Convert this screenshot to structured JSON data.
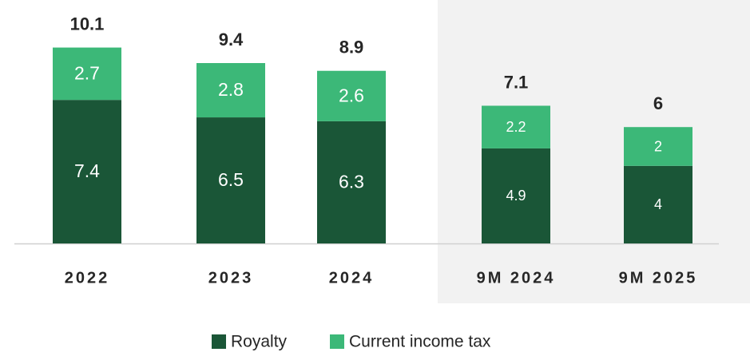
{
  "chart_data": {
    "type": "stacked_bar",
    "categories": [
      "2022",
      "2023",
      "2024",
      "9M 2024",
      "9M 2025"
    ],
    "series": [
      {
        "name": "Royalty",
        "color": "#1a5637",
        "values": [
          7.4,
          6.5,
          6.3,
          4.9,
          4.0
        ]
      },
      {
        "name": "Current income tax",
        "color": "#3cb878",
        "values": [
          2.7,
          2.8,
          2.6,
          2.2,
          2.0
        ]
      }
    ],
    "totals": [
      10.1,
      9.4,
      8.9,
      7.1,
      6.0
    ]
  }
}
